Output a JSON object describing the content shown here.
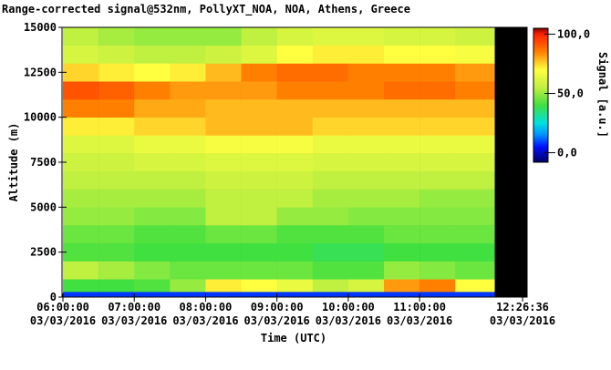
{
  "chart_data": {
    "type": "heatmap",
    "title": "Range-corrected signal@532nm, PollyXT_NOA, NOA, Athens, Greece",
    "xlabel": "Time (UTC)",
    "ylabel": "Altitude (m)",
    "colorbar_label": "Signal [a.u.]",
    "xlim": [
      "2016-03-03T06:00:00",
      "2016-03-03T12:26:36"
    ],
    "xticks": [
      {
        "value": "2016-03-03T06:00:00",
        "label": "06:00:00 03/03/2016"
      },
      {
        "value": "2016-03-03T07:00:00",
        "label": "07:00:00 03/03/2016"
      },
      {
        "value": "2016-03-03T08:00:00",
        "label": "08:00:00 03/03/2016"
      },
      {
        "value": "2016-03-03T09:00:00",
        "label": "09:00:00 03/03/2016"
      },
      {
        "value": "2016-03-03T10:00:00",
        "label": "10:00:00 03/03/2016"
      },
      {
        "value": "2016-03-03T11:00:00",
        "label": "11:00:00 03/03/2016"
      },
      {
        "value": "2016-03-03T12:26:36",
        "label": "12:26:36 03/03/2016"
      }
    ],
    "ylim": [
      0,
      15000
    ],
    "yticks": [
      0,
      2500,
      5000,
      7500,
      10000,
      12500,
      15000
    ],
    "xbins": [
      "2016-03-03T06:00:00",
      "2016-03-03T06:30:00",
      "2016-03-03T07:00:00",
      "2016-03-03T07:30:00",
      "2016-03-03T08:00:00",
      "2016-03-03T08:30:00",
      "2016-03-03T09:00:00",
      "2016-03-03T09:30:00",
      "2016-03-03T10:00:00",
      "2016-03-03T10:30:00",
      "2016-03-03T11:00:00",
      "2016-03-03T11:30:00",
      "2016-03-03T12:03:00"
    ],
    "ybins": [
      0,
      300,
      1000,
      2000,
      3000,
      4000,
      5000,
      6000,
      7000,
      8000,
      9000,
      10000,
      11000,
      12000,
      13000,
      14000,
      15000
    ],
    "z": [
      [
        8,
        8,
        8,
        8,
        8,
        8,
        8,
        8,
        8,
        8,
        8,
        8
      ],
      [
        40,
        40,
        42,
        50,
        72,
        70,
        65,
        55,
        60,
        82,
        85,
        70
      ],
      [
        55,
        52,
        48,
        45,
        45,
        45,
        45,
        42,
        42,
        50,
        48,
        45
      ],
      [
        42,
        42,
        40,
        40,
        40,
        40,
        40,
        38,
        38,
        40,
        40,
        40
      ],
      [
        45,
        45,
        42,
        42,
        45,
        45,
        42,
        42,
        42,
        45,
        45,
        45
      ],
      [
        50,
        50,
        48,
        48,
        55,
        55,
        50,
        50,
        48,
        48,
        48,
        48
      ],
      [
        52,
        52,
        52,
        52,
        55,
        55,
        55,
        52,
        52,
        52,
        50,
        50
      ],
      [
        55,
        55,
        55,
        55,
        58,
        58,
        58,
        55,
        55,
        55,
        55,
        55
      ],
      [
        58,
        58,
        60,
        60,
        62,
        62,
        62,
        60,
        60,
        60,
        60,
        60
      ],
      [
        62,
        62,
        65,
        65,
        68,
        68,
        68,
        65,
        65,
        65,
        65,
        65
      ],
      [
        72,
        72,
        75,
        75,
        78,
        78,
        78,
        75,
        75,
        75,
        75,
        75
      ],
      [
        85,
        85,
        80,
        80,
        78,
        78,
        78,
        78,
        78,
        78,
        78,
        78
      ],
      [
        92,
        90,
        85,
        82,
        82,
        82,
        85,
        85,
        85,
        88,
        88,
        85
      ],
      [
        75,
        72,
        70,
        72,
        78,
        85,
        88,
        88,
        85,
        85,
        85,
        82
      ],
      [
        60,
        58,
        55,
        55,
        58,
        62,
        70,
        72,
        72,
        70,
        70,
        68
      ],
      [
        55,
        52,
        50,
        50,
        50,
        55,
        60,
        62,
        62,
        60,
        60,
        58
      ]
    ],
    "zlim": [
      -8,
      105
    ],
    "zticks": [
      {
        "value": 0,
        "label": "0,0"
      },
      {
        "value": 50,
        "label": "50,0"
      },
      {
        "value": 100,
        "label": "100,0"
      }
    ],
    "colorscale": [
      [
        -8,
        "#000060"
      ],
      [
        5,
        "#0010ff"
      ],
      [
        15,
        "#0090ff"
      ],
      [
        25,
        "#00e0e0"
      ],
      [
        40,
        "#40e040"
      ],
      [
        55,
        "#c0f040"
      ],
      [
        70,
        "#ffff40"
      ],
      [
        85,
        "#ff8000"
      ],
      [
        100,
        "#ff2000"
      ],
      [
        105,
        "#800000"
      ]
    ],
    "nodata_color": "#000000"
  }
}
